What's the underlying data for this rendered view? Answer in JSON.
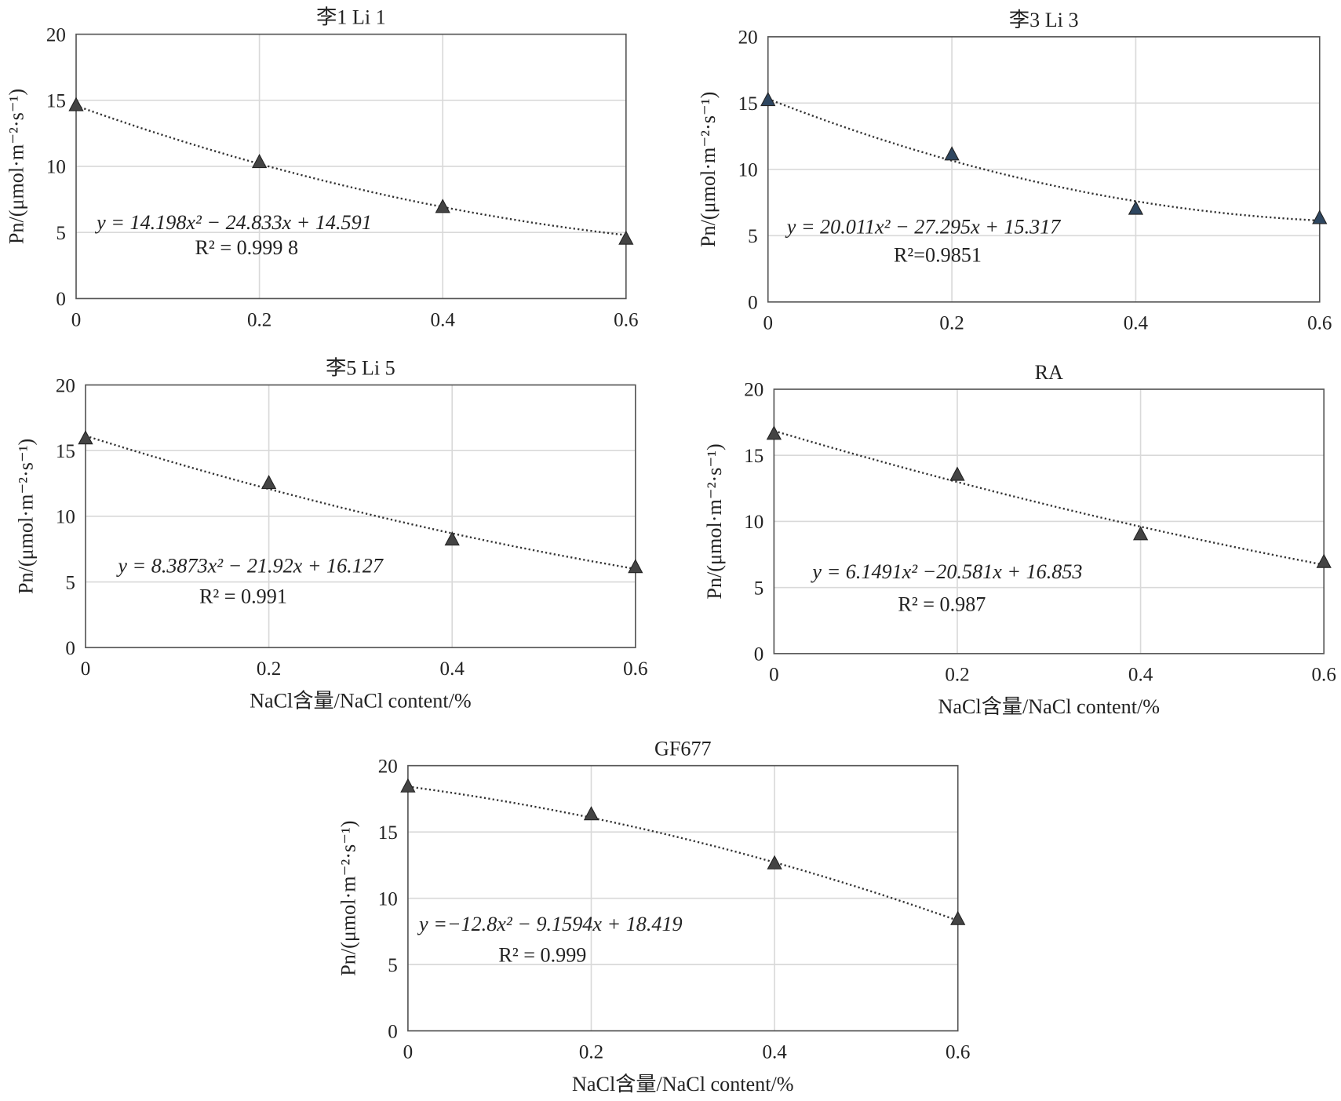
{
  "chart_data": [
    {
      "type": "scatter",
      "title": "李1 Li 1",
      "xlabel": "",
      "ylabel": "Pn/(μmol·m⁻²·s⁻¹)",
      "x": [
        0,
        0.2,
        0.4,
        0.6
      ],
      "y": [
        14.6,
        10.3,
        6.9,
        4.5
      ],
      "xlim": [
        0,
        0.6
      ],
      "ylim": [
        0,
        20
      ],
      "xticks": [
        "0",
        "0.2",
        "0.4",
        "0.6"
      ],
      "yticks": [
        "0",
        "5",
        "10",
        "15",
        "20"
      ],
      "trend": {
        "a": 14.198,
        "b": -24.833,
        "c": 14.591
      },
      "equation": "y = 14.198x² − 24.833x + 14.591",
      "r2": "R² = 0.999 8",
      "marker_color": "#444444",
      "grid": true
    },
    {
      "type": "scatter",
      "title": "李3  Li 3",
      "xlabel": "",
      "ylabel": "Pn/(μmol·m⁻²·s⁻¹)",
      "x": [
        0,
        0.2,
        0.4,
        0.6
      ],
      "y": [
        15.2,
        11.1,
        7.0,
        6.3
      ],
      "xlim": [
        0,
        0.6
      ],
      "ylim": [
        0,
        20
      ],
      "xticks": [
        "0",
        "0.2",
        "0.4",
        "0.6"
      ],
      "yticks": [
        "0",
        "5",
        "10",
        "15",
        "20"
      ],
      "trend": {
        "a": 20.011,
        "b": -27.295,
        "c": 15.317
      },
      "equation": "y = 20.011x² − 27.295x + 15.317",
      "r2": "R²=0.9851",
      "marker_color": "#2e4660",
      "grid": true
    },
    {
      "type": "scatter",
      "title": "李5  Li 5",
      "xlabel": "NaCl含量/NaCl content/%",
      "ylabel": "Pn/(μmol·m⁻²·s⁻¹)",
      "x": [
        0,
        0.2,
        0.4,
        0.6
      ],
      "y": [
        15.9,
        12.5,
        8.2,
        6.1
      ],
      "xlim": [
        0,
        0.6
      ],
      "ylim": [
        0,
        20
      ],
      "xticks": [
        "0",
        "0.2",
        "0.4",
        "0.6"
      ],
      "yticks": [
        "0",
        "5",
        "10",
        "15",
        "20"
      ],
      "trend": {
        "a": 8.3873,
        "b": -21.92,
        "c": 16.127
      },
      "equation": "y = 8.3873x² − 21.92x + 16.127",
      "r2": "R² = 0.991",
      "marker_color": "#444444",
      "grid": true
    },
    {
      "type": "scatter",
      "title": "RA",
      "xlabel": "NaCl含量/NaCl content/%",
      "ylabel": "Pn/(μmol·m⁻²·s⁻¹)",
      "x": [
        0,
        0.2,
        0.4,
        0.6
      ],
      "y": [
        16.6,
        13.5,
        9.0,
        6.9
      ],
      "xlim": [
        0,
        0.6
      ],
      "ylim": [
        0,
        20
      ],
      "xticks": [
        "0",
        "0.2",
        "0.4",
        "0.6"
      ],
      "yticks": [
        "0",
        "5",
        "10",
        "15",
        "20"
      ],
      "trend": {
        "a": 6.1491,
        "b": -20.581,
        "c": 16.853
      },
      "equation": "y = 6.1491x² −20.581x + 16.853",
      "r2": "R² = 0.987",
      "marker_color": "#444444",
      "grid": true
    },
    {
      "type": "scatter",
      "title": "GF677",
      "xlabel": "NaCl含量/NaCl content/%",
      "ylabel": "Pn/(μmol·m⁻²·s⁻¹)",
      "x": [
        0,
        0.2,
        0.4,
        0.6
      ],
      "y": [
        18.4,
        16.3,
        12.6,
        8.4
      ],
      "xlim": [
        0,
        0.6
      ],
      "ylim": [
        0,
        20
      ],
      "xticks": [
        "0",
        "0.2",
        "0.4",
        "0.6"
      ],
      "yticks": [
        "0",
        "5",
        "10",
        "15",
        "20"
      ],
      "trend": {
        "a": -12.8,
        "b": -9.1594,
        "c": 18.419
      },
      "equation": "y =−12.8x² − 9.1594x + 18.419",
      "r2": "R² = 0.999",
      "marker_color": "#444444",
      "grid": true
    }
  ]
}
